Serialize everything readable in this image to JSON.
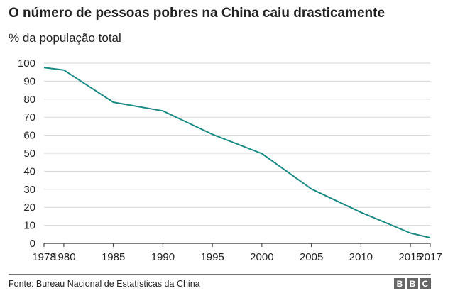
{
  "chart_data": {
    "type": "line",
    "title": "O número de pessoas pobres na China caiu drasticamente",
    "subtitle": "% da população total",
    "x": [
      1978,
      1980,
      1985,
      1990,
      1995,
      2000,
      2005,
      2010,
      2015,
      2017
    ],
    "x_ticks": [
      "1978",
      "1980",
      "1985",
      "1990",
      "1995",
      "2000",
      "2005",
      "2010",
      "2015",
      "2017"
    ],
    "series": [
      {
        "values": [
          97.5,
          96.2,
          78.3,
          73.5,
          60.5,
          49.8,
          30.2,
          17.2,
          5.7,
          3.1
        ]
      }
    ],
    "xlim": [
      1978,
      2017
    ],
    "ylim": [
      0,
      100
    ],
    "y_ticks": [
      "0",
      "10",
      "20",
      "30",
      "40",
      "50",
      "60",
      "70",
      "80",
      "90",
      "100"
    ],
    "line_color": "#1a8a84",
    "grid": true
  },
  "footer": {
    "source": "Fonte: Bureau Nacional de Estatísticas da China",
    "logo_letters": [
      "B",
      "B",
      "C"
    ]
  }
}
